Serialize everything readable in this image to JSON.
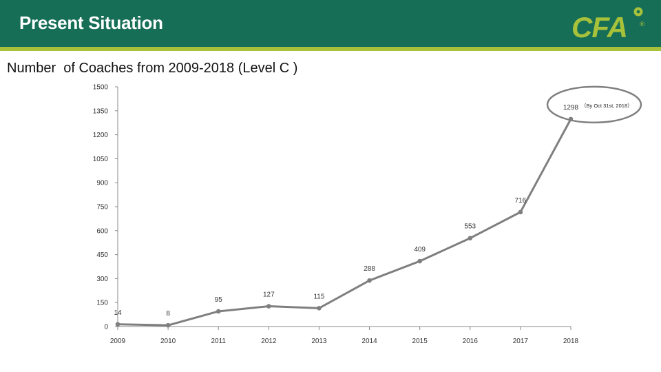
{
  "header": {
    "title": "Present Situation",
    "logo_text": "CFA",
    "logo_registered": "®",
    "colors": {
      "bar": "#176e57",
      "stripe": "#a7c23a",
      "logo": "#a7c23a"
    }
  },
  "subtitle": "Number  of Coaches from 2009-2018 (Level C )",
  "chart_data": {
    "type": "line",
    "x": [
      "2009",
      "2010",
      "2011",
      "2012",
      "2013",
      "2014",
      "2015",
      "2016",
      "2017",
      "2018"
    ],
    "series": [
      {
        "values": [
          14,
          8,
          95,
          127,
          115,
          288,
          409,
          553,
          716,
          1298
        ],
        "color": "#7f7f7f"
      }
    ],
    "ylim": [
      0,
      1500
    ],
    "yticks": [
      0,
      150,
      300,
      450,
      600,
      750,
      900,
      1050,
      1200,
      1350,
      1500
    ],
    "grid": false,
    "legend": "none",
    "annotation": {
      "text": "（By Oct 31st, 2018）",
      "target_x": "2018",
      "style": "ellipse-highlight",
      "ellipse_color": "#808080"
    },
    "title": "",
    "xlabel": "",
    "ylabel": ""
  }
}
